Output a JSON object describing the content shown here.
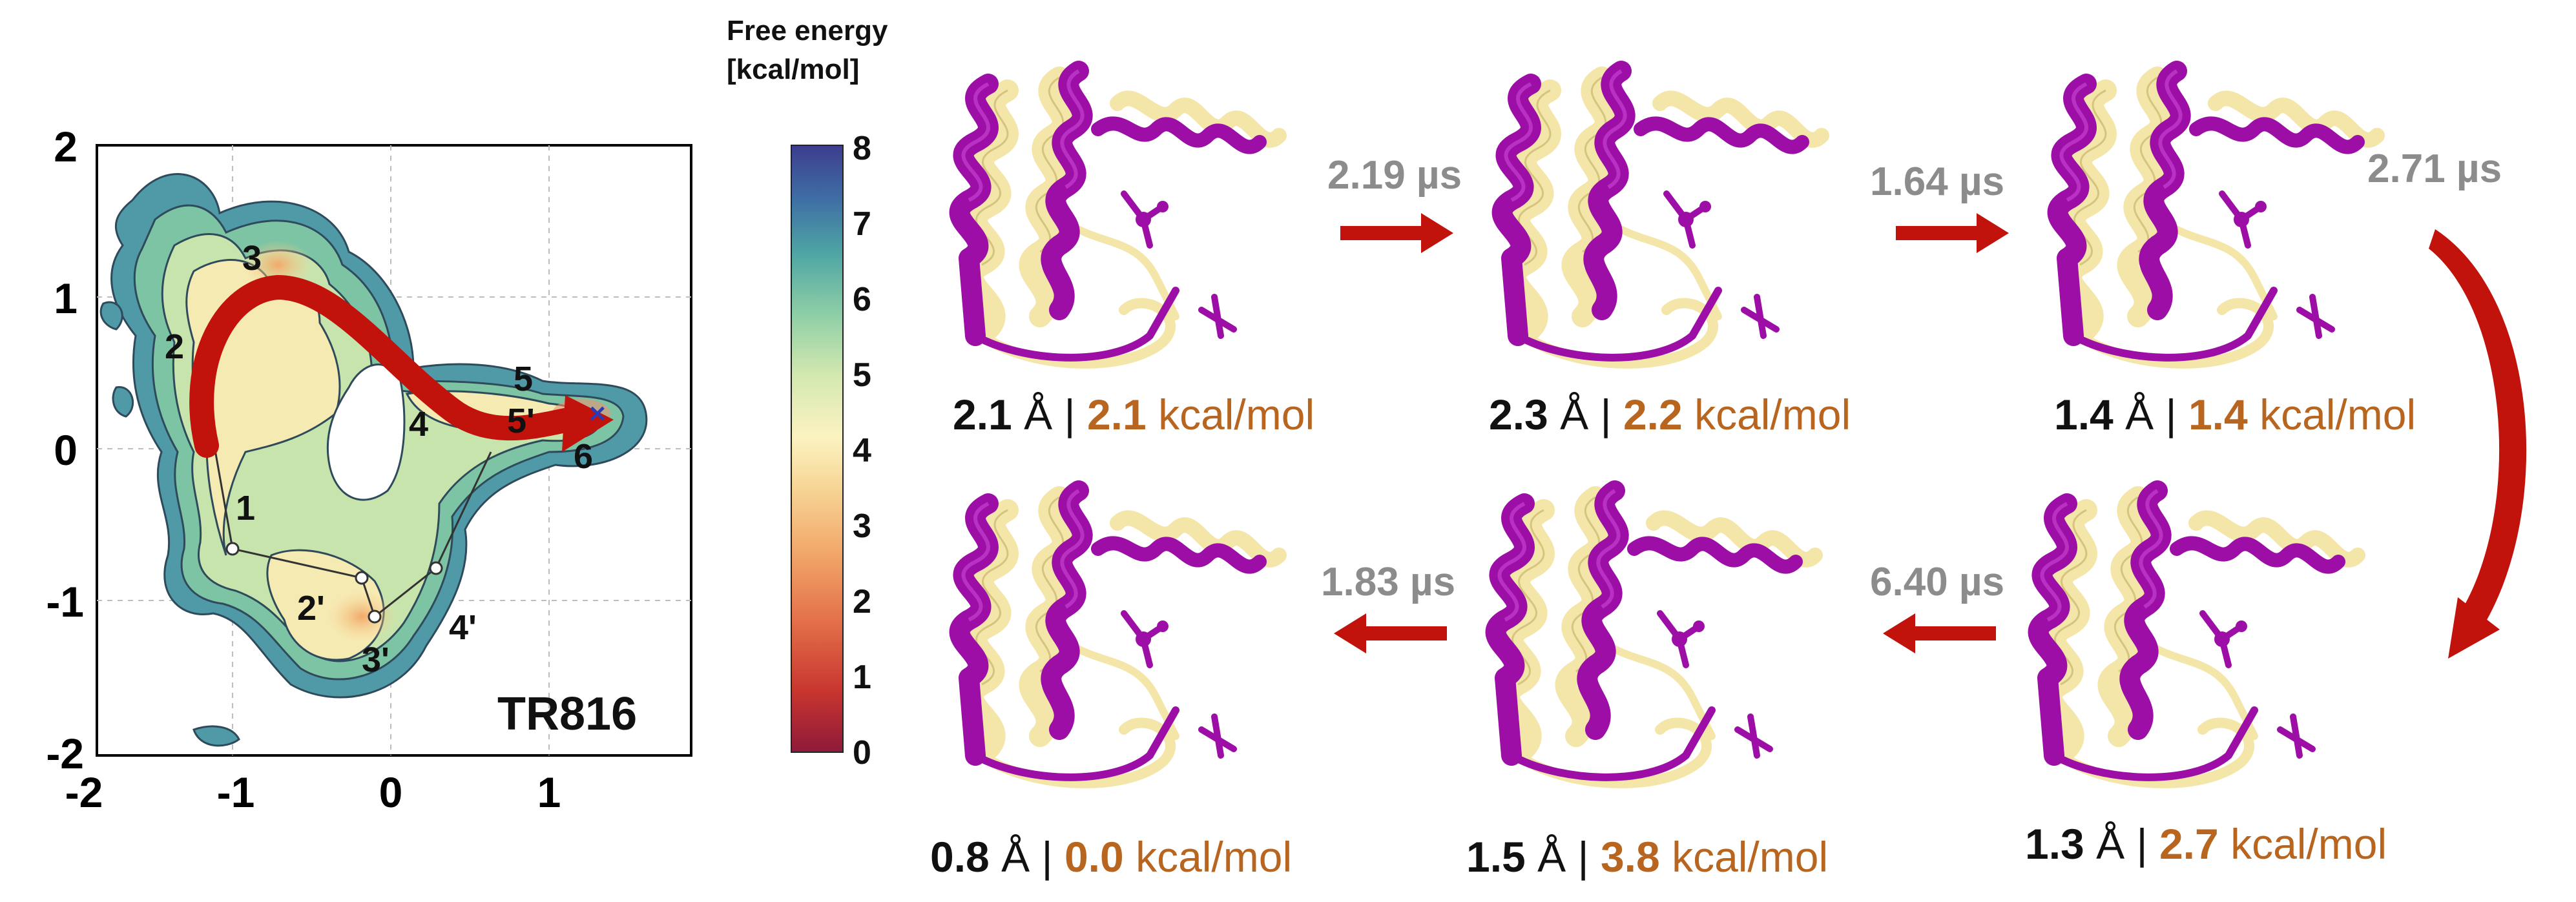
{
  "colors": {
    "accent_orange": "#b8651f",
    "time_gray": "#8c8c8c",
    "arrow_red": "#c1120c",
    "helix_magenta": "#9c0ea6",
    "helix_cream": "#f4e6a8",
    "contour_line": "#3a4a58"
  },
  "landscape": {
    "label": "TR816",
    "colorbar": {
      "title_line1": "Free energy",
      "title_line2": "[kcal/mol]",
      "ticks": [
        "0",
        "1",
        "2",
        "3",
        "4",
        "5",
        "6",
        "7",
        "8"
      ]
    },
    "x_ticks": [
      "-2",
      "-1",
      "0",
      "1"
    ],
    "y_ticks": [
      "2",
      "1",
      "0",
      "-1",
      "-2"
    ],
    "state_labels": [
      "1",
      "2",
      "3",
      "4",
      "5",
      "5'",
      "6",
      "2'",
      "3'",
      "4'"
    ]
  },
  "chart_data": {
    "type": "heatmap",
    "title": "TR816",
    "xlim": [
      -2,
      1.7
    ],
    "ylim": [
      -2,
      2
    ],
    "x_ticks": [
      -2,
      -1,
      0,
      1
    ],
    "y_ticks": [
      -2,
      -1,
      0,
      1,
      2
    ],
    "colorbar": {
      "label": "Free energy [kcal/mol]",
      "range": [
        0,
        8
      ],
      "ticks": [
        0,
        1,
        2,
        3,
        4,
        5,
        6,
        7,
        8
      ]
    },
    "states": [
      {
        "label": "1",
        "x": -1.05,
        "y": -0.7
      },
      {
        "label": "2",
        "x": -1.15,
        "y": 0.75
      },
      {
        "label": "3",
        "x": -0.7,
        "y": 1.1
      },
      {
        "label": "4",
        "x": 0.3,
        "y": 0.15
      },
      {
        "label": "5",
        "x": 0.85,
        "y": 0.45
      },
      {
        "label": "5'",
        "x": 0.9,
        "y": 0.1
      },
      {
        "label": "6",
        "x": 1.25,
        "y": 0.2
      },
      {
        "label": "2'",
        "x": -0.3,
        "y": -0.9
      },
      {
        "label": "3'",
        "x": -0.15,
        "y": -1.15
      },
      {
        "label": "4'",
        "x": 0.35,
        "y": -0.85
      }
    ]
  },
  "snapshots": [
    {
      "rmsd": "2.1",
      "unit": "Å",
      "sep": "|",
      "energy": "2.1",
      "energy_unit": "kcal/mol"
    },
    {
      "rmsd": "2.3",
      "unit": "Å",
      "sep": "|",
      "energy": "2.2",
      "energy_unit": "kcal/mol"
    },
    {
      "rmsd": "1.4",
      "unit": "Å",
      "sep": "|",
      "energy": "1.4",
      "energy_unit": "kcal/mol"
    },
    {
      "rmsd": "1.3",
      "unit": "Å",
      "sep": "|",
      "energy": "2.7",
      "energy_unit": "kcal/mol"
    },
    {
      "rmsd": "1.5",
      "unit": "Å",
      "sep": "|",
      "energy": "3.8",
      "energy_unit": "kcal/mol"
    },
    {
      "rmsd": "0.8",
      "unit": "Å",
      "sep": "|",
      "energy": "0.0",
      "energy_unit": "kcal/mol"
    }
  ],
  "transitions": [
    "2.19 µs",
    "1.64 µs",
    "2.71 µs",
    "6.40 µs",
    "1.83 µs"
  ]
}
